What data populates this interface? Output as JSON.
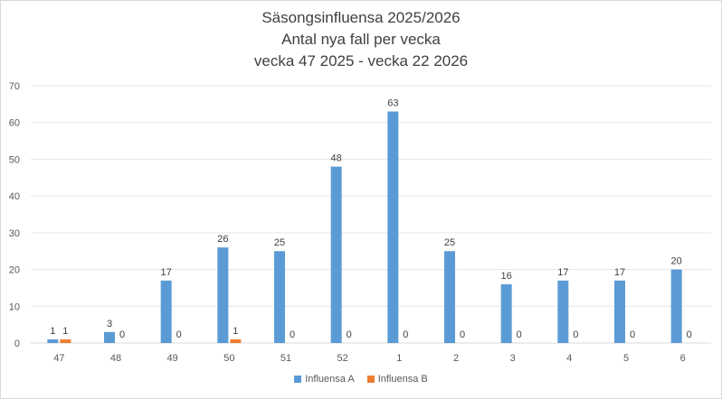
{
  "chart_data": {
    "type": "bar",
    "title": [
      "Säsongsinfluensa 2025/2026",
      "Antal nya fall per vecka",
      "vecka 47 2025 - vecka 22 2026"
    ],
    "categories": [
      "47",
      "48",
      "49",
      "50",
      "51",
      "52",
      "1",
      "2",
      "3",
      "4",
      "5",
      "6"
    ],
    "series": [
      {
        "name": "Influensa A",
        "color": "#5b9bd5",
        "values": [
          1,
          3,
          17,
          26,
          25,
          48,
          63,
          25,
          16,
          17,
          17,
          20
        ]
      },
      {
        "name": "Influensa B",
        "color": "#ed7d31",
        "values": [
          1,
          0,
          0,
          1,
          0,
          0,
          0,
          0,
          0,
          0,
          0,
          0
        ]
      }
    ],
    "ylim": [
      0,
      70
    ],
    "yticks": [
      0,
      10,
      20,
      30,
      40,
      50,
      60,
      70
    ],
    "grid": true,
    "legend_position": "bottom"
  }
}
